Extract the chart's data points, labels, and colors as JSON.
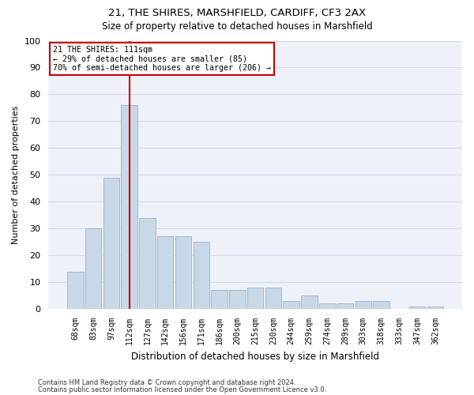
{
  "title1": "21, THE SHIRES, MARSHFIELD, CARDIFF, CF3 2AX",
  "title2": "Size of property relative to detached houses in Marshfield",
  "xlabel": "Distribution of detached houses by size in Marshfield",
  "ylabel": "Number of detached properties",
  "categories": [
    "68sqm",
    "83sqm",
    "97sqm",
    "112sqm",
    "127sqm",
    "142sqm",
    "156sqm",
    "171sqm",
    "186sqm",
    "200sqm",
    "215sqm",
    "230sqm",
    "244sqm",
    "259sqm",
    "274sqm",
    "289sqm",
    "303sqm",
    "318sqm",
    "333sqm",
    "347sqm",
    "362sqm"
  ],
  "values": [
    14,
    30,
    49,
    76,
    34,
    27,
    27,
    25,
    7,
    7,
    8,
    8,
    3,
    5,
    2,
    2,
    3,
    3,
    0,
    1,
    1
  ],
  "bar_color": "#c8d8e8",
  "bar_edge_color": "#9ab0c8",
  "vline_x_index": 3,
  "vline_color": "#cc0000",
  "annotation_line1": "21 THE SHIRES: 111sqm",
  "annotation_line2": "← 29% of detached houses are smaller (85)",
  "annotation_line3": "70% of semi-detached houses are larger (206) →",
  "annotation_box_color": "#ffffff",
  "annotation_box_edge_color": "#cc0000",
  "ylim": [
    0,
    100
  ],
  "yticks": [
    0,
    10,
    20,
    30,
    40,
    50,
    60,
    70,
    80,
    90,
    100
  ],
  "grid_color": "#d0d8e8",
  "background_color": "#eef2f8",
  "footer1": "Contains HM Land Registry data © Crown copyright and database right 2024.",
  "footer2": "Contains public sector information licensed under the Open Government Licence v3.0."
}
